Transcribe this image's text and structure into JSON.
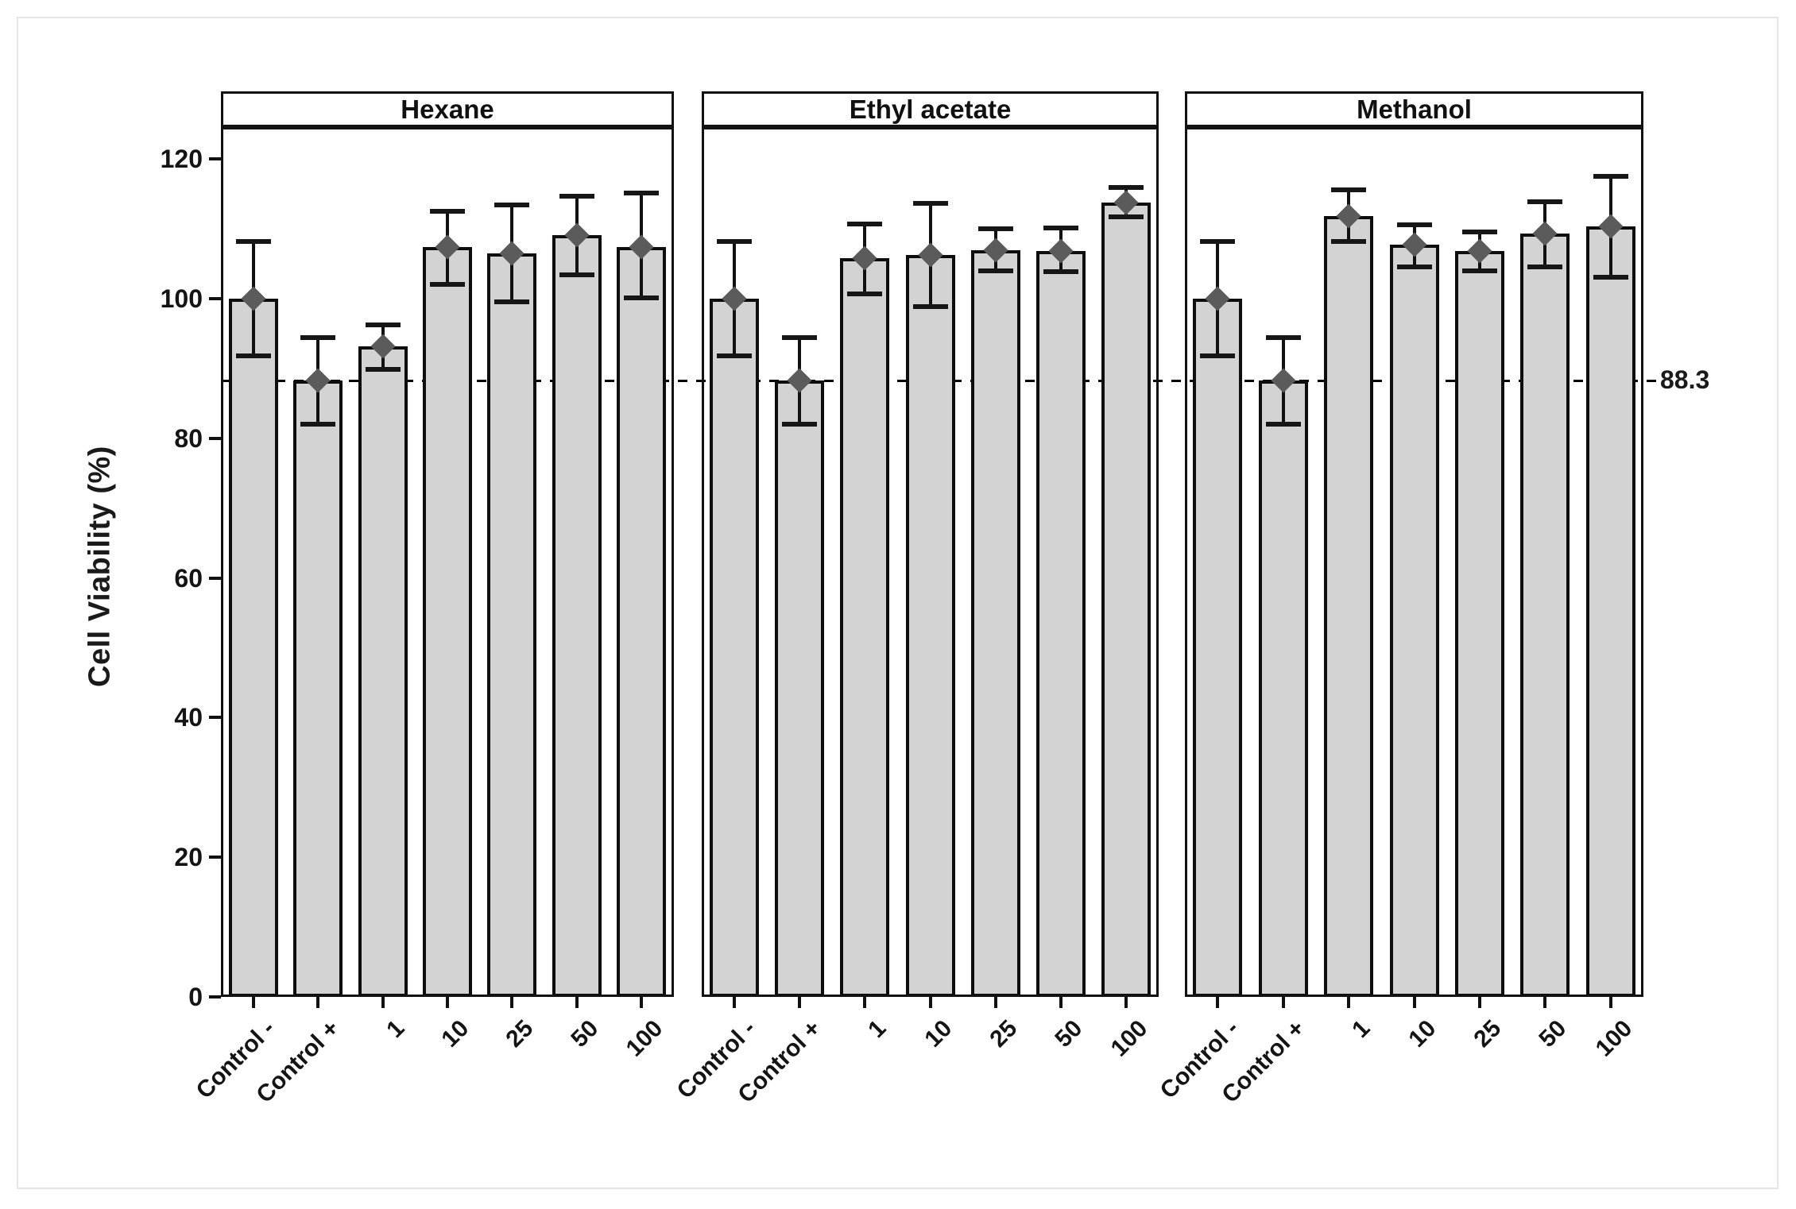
{
  "page": {
    "background": "#ffffff",
    "card_border_color": "#e6e6e6"
  },
  "chart_data": {
    "type": "bar",
    "faceted": true,
    "title": "",
    "ylabel": "Cell Viability (%)",
    "xlabel": "",
    "categories": [
      "Control -",
      "Control +",
      "1",
      "10",
      "25",
      "50",
      "100"
    ],
    "panels": [
      {
        "label": "Hexane",
        "values": [
          100.0,
          88.3,
          93.2,
          107.4,
          106.5,
          109.1,
          107.4
        ],
        "err_low": [
          91.8,
          82.0,
          89.9,
          102.1,
          99.6,
          103.4,
          100.1
        ],
        "err_high": [
          108.2,
          94.4,
          96.3,
          112.5,
          113.5,
          114.7,
          115.1
        ]
      },
      {
        "label": "Ethyl acetate",
        "values": [
          100.0,
          88.3,
          105.8,
          106.3,
          107.0,
          106.9,
          113.8
        ],
        "err_low": [
          91.8,
          82.0,
          100.7,
          98.9,
          104.0,
          103.9,
          111.7
        ],
        "err_high": [
          108.2,
          94.4,
          110.7,
          113.7,
          110.0,
          110.1,
          116.0
        ]
      },
      {
        "label": "Methanol",
        "values": [
          100.0,
          88.3,
          111.9,
          107.8,
          106.9,
          109.3,
          110.4
        ],
        "err_low": [
          91.8,
          82.0,
          108.2,
          104.6,
          104.0,
          104.6,
          103.1
        ],
        "err_high": [
          108.2,
          94.4,
          115.6,
          110.6,
          109.6,
          113.9,
          117.6
        ]
      }
    ],
    "yticks": [
      0,
      20,
      40,
      60,
      80,
      100,
      120
    ],
    "ylim": [
      0,
      124.6
    ],
    "reference_line": {
      "value": 88.3,
      "label": "88.3",
      "style": "dashed"
    },
    "error_marker": "diamond",
    "bar_fill": "#d3d3d3",
    "bar_stroke": "#0d0d0d",
    "marker_color": "#5b5b5b",
    "grid": "off",
    "legend": "none"
  }
}
